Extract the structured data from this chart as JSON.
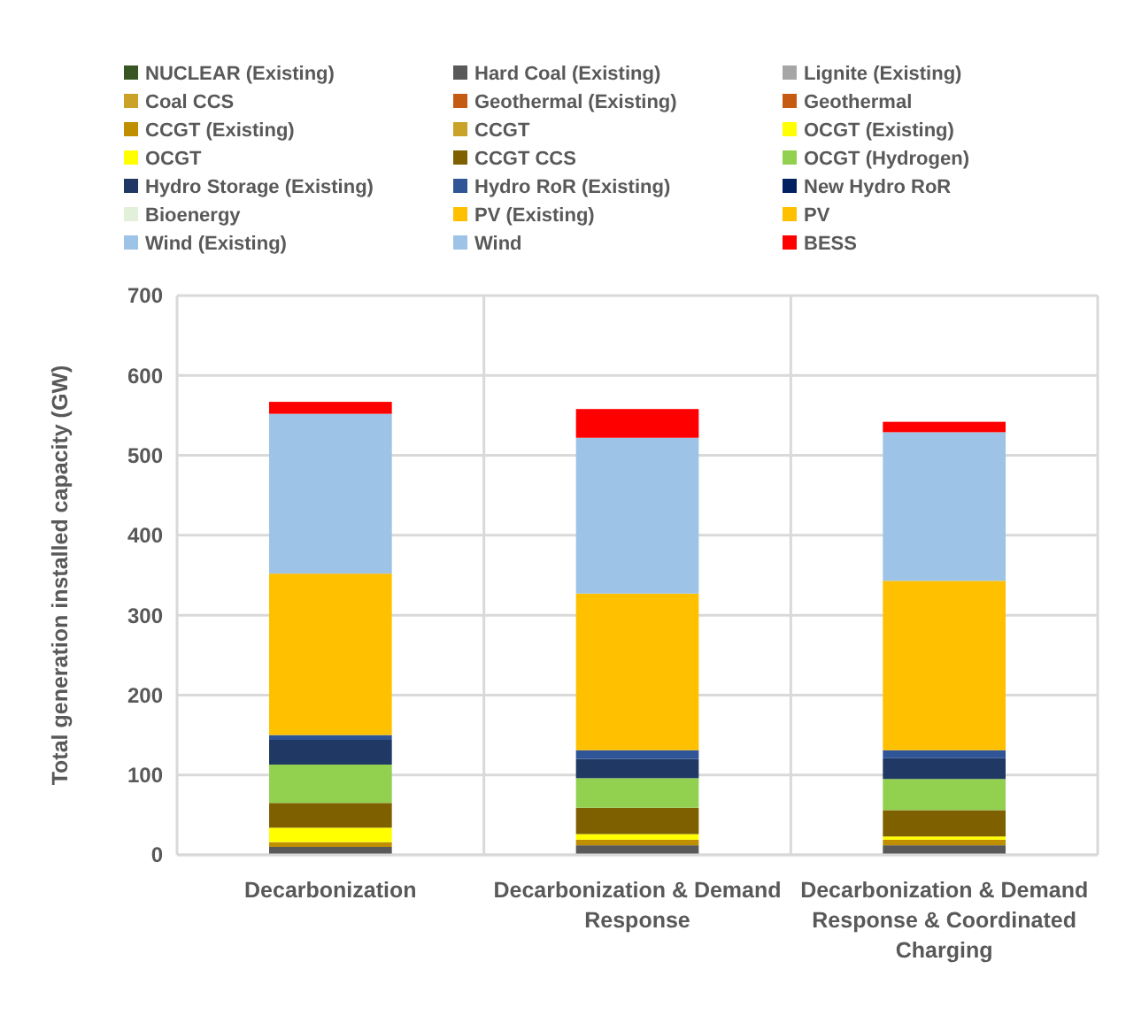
{
  "chart_data": {
    "type": "bar",
    "stacked": true,
    "ylabel": "Total generation installed capacity (GW)",
    "categories": [
      "Decarbonization",
      "Decarbonization & Demand Response",
      "Decarbonization & Demand Response & Coordinated Charging"
    ],
    "ylim": [
      0,
      700
    ],
    "yticks": [
      0,
      100,
      200,
      300,
      400,
      500,
      600,
      700
    ],
    "grid": true,
    "legend": "top",
    "series": [
      {
        "name": "NUCLEAR (Existing)",
        "color": "#375623",
        "values": [
          null,
          null,
          null
        ]
      },
      {
        "name": "Hard Coal  (Existing)",
        "color": "#595959",
        "values": [
          10,
          12,
          12
        ]
      },
      {
        "name": "Lignite (Existing)",
        "color": "#a6a6a6",
        "values": [
          null,
          null,
          null
        ]
      },
      {
        "name": "Coal CCS",
        "color": "#c9a227",
        "values": [
          null,
          null,
          null
        ]
      },
      {
        "name": "Geothermal (Existing)",
        "color": "#c55a11",
        "values": [
          null,
          null,
          null
        ]
      },
      {
        "name": "Geothermal",
        "color": "#c55a11",
        "values": [
          null,
          null,
          null
        ]
      },
      {
        "name": "CCGT (Existing)",
        "color": "#bf8f00",
        "values": [
          6,
          7,
          7
        ]
      },
      {
        "name": "CCGT",
        "color": "#c9a227",
        "values": [
          null,
          null,
          null
        ]
      },
      {
        "name": "OCGT (Existing)",
        "color": "#ffff00",
        "values": [
          18,
          7,
          4
        ]
      },
      {
        "name": "OCGT",
        "color": "#ffff00",
        "values": [
          null,
          null,
          null
        ]
      },
      {
        "name": "CCGT CCS",
        "color": "#7f6000",
        "values": [
          31,
          33,
          33
        ]
      },
      {
        "name": "OCGT (Hydrogen)",
        "color": "#92d050",
        "values": [
          48,
          37,
          39
        ]
      },
      {
        "name": "Hydro Storage (Existing)",
        "color": "#1f3864",
        "values": [
          31,
          24,
          26
        ]
      },
      {
        "name": "Hydro RoR (Existing)",
        "color": "#2f5597",
        "values": [
          6,
          11,
          10
        ]
      },
      {
        "name": "New Hydro RoR",
        "color": "#002060",
        "values": [
          null,
          null,
          null
        ]
      },
      {
        "name": "Bioenergy",
        "color": "#e2f0d9",
        "values": [
          null,
          null,
          null
        ]
      },
      {
        "name": "PV (Existing)",
        "color": "#ffc000",
        "values": [
          null,
          null,
          null
        ]
      },
      {
        "name": "PV",
        "color": "#ffc000",
        "values": [
          202,
          196,
          212
        ]
      },
      {
        "name": "Wind (Existing)",
        "color": "#9dc3e6",
        "values": [
          null,
          null,
          null
        ]
      },
      {
        "name": "Wind",
        "color": "#9dc3e6",
        "values": [
          200,
          195,
          186
        ]
      },
      {
        "name": "BESS",
        "color": "#ff0000",
        "values": [
          15,
          36,
          13
        ]
      }
    ]
  }
}
